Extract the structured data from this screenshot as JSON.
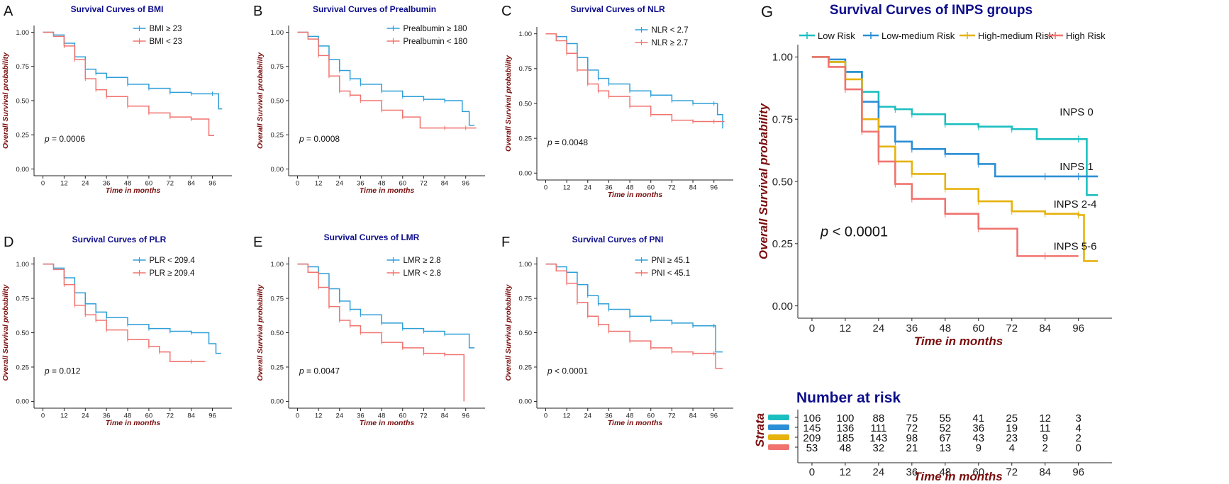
{
  "colors": {
    "blue": "#2f9fd8",
    "red": "#f0736f",
    "teal": "#1cbfc0",
    "low_medium": "#2b8fd5",
    "gold": "#e6b20e",
    "title": "#0d0d8c",
    "axis_label": "#7a0c0c"
  },
  "chart_data": [
    {
      "type": "line",
      "panel": "A",
      "title": "Survival Curves of BMI",
      "xlabel": "Time in months",
      "ylabel": "Overall Survival probability",
      "xlim": [
        0,
        102
      ],
      "ylim": [
        0,
        1
      ],
      "x_ticks": [
        0,
        12,
        24,
        36,
        48,
        60,
        72,
        84,
        96
      ],
      "y_ticks": [
        "0.00",
        "0.25",
        "0.50",
        "0.75",
        "1.00"
      ],
      "pvalue": "= 0.0006",
      "series": [
        {
          "name": "BMI ≥ 23",
          "color": "#2f9fd8",
          "x": [
            0,
            6,
            12,
            18,
            24,
            30,
            36,
            48,
            60,
            72,
            84,
            96,
            99.5,
            99.5,
            101.5
          ],
          "y": [
            1,
            0.98,
            0.92,
            0.82,
            0.73,
            0.7,
            0.67,
            0.62,
            0.59,
            0.56,
            0.55,
            0.55,
            0.55,
            0.44,
            0.44
          ]
        },
        {
          "name": "BMI < 23",
          "color": "#f0736f",
          "x": [
            0,
            6,
            12,
            18,
            24,
            30,
            36,
            48,
            60,
            72,
            84,
            94,
            94,
            97
          ],
          "y": [
            1,
            0.97,
            0.9,
            0.8,
            0.66,
            0.58,
            0.53,
            0.46,
            0.41,
            0.38,
            0.365,
            0.365,
            0.245,
            0.245
          ]
        }
      ]
    },
    {
      "type": "line",
      "panel": "B",
      "title": "Survival Curves of Prealbumin",
      "xlabel": "Time in months",
      "ylabel": "Overall Survival probability",
      "xlim": [
        0,
        102
      ],
      "ylim": [
        0,
        1
      ],
      "x_ticks": [
        0,
        12,
        24,
        36,
        48,
        60,
        72,
        84,
        96
      ],
      "y_ticks": [
        "0.00",
        "0.25",
        "0.50",
        "0.75",
        "1.00"
      ],
      "pvalue": "= 0.0008",
      "series": [
        {
          "name": "Prealbumin ≥ 180",
          "color": "#2f9fd8",
          "x": [
            0,
            6,
            12,
            18,
            24,
            30,
            36,
            48,
            60,
            72,
            84,
            94,
            94,
            98,
            98,
            101
          ],
          "y": [
            1,
            0.97,
            0.9,
            0.8,
            0.72,
            0.66,
            0.62,
            0.57,
            0.53,
            0.51,
            0.5,
            0.5,
            0.42,
            0.42,
            0.32,
            0.32
          ]
        },
        {
          "name": "Prealbumin < 180",
          "color": "#f0736f",
          "x": [
            0,
            6,
            12,
            18,
            24,
            30,
            36,
            48,
            60,
            70,
            70,
            84,
            96,
            102
          ],
          "y": [
            1,
            0.95,
            0.83,
            0.68,
            0.57,
            0.54,
            0.5,
            0.43,
            0.38,
            0.38,
            0.3,
            0.3,
            0.3,
            0.3
          ]
        }
      ]
    },
    {
      "type": "line",
      "panel": "C",
      "title": "Survival Curves of NLR",
      "xlabel": "Time in months",
      "ylabel": "Overall Survival probability",
      "xlim": [
        0,
        102
      ],
      "ylim": [
        0,
        1
      ],
      "x_ticks": [
        0,
        12,
        24,
        36,
        48,
        60,
        72,
        84,
        96
      ],
      "y_ticks": [
        "0.00",
        "0.25",
        "0.50",
        "0.75",
        "1.00"
      ],
      "pvalue": "= 0.0048",
      "series": [
        {
          "name": "NLR < 2.7",
          "color": "#2f9fd8",
          "x": [
            0,
            6,
            12,
            18,
            24,
            30,
            36,
            48,
            60,
            72,
            84,
            96,
            98,
            98,
            101
          ],
          "y": [
            1,
            0.98,
            0.93,
            0.83,
            0.74,
            0.68,
            0.64,
            0.59,
            0.56,
            0.52,
            0.5,
            0.5,
            0.5,
            0.42,
            0.32
          ]
        },
        {
          "name": "NLR ≥ 2.7",
          "color": "#f0736f",
          "x": [
            0,
            6,
            12,
            18,
            24,
            30,
            36,
            48,
            60,
            72,
            84,
            96,
            102
          ],
          "y": [
            1,
            0.95,
            0.86,
            0.74,
            0.64,
            0.59,
            0.55,
            0.48,
            0.42,
            0.38,
            0.37,
            0.37,
            0.37
          ]
        }
      ]
    },
    {
      "type": "line",
      "panel": "D",
      "title": "Survival Curves of PLR",
      "xlabel": "Time in months",
      "ylabel": "Overall Survival probability",
      "xlim": [
        0,
        102
      ],
      "ylim": [
        0,
        1
      ],
      "x_ticks": [
        0,
        12,
        24,
        36,
        48,
        60,
        72,
        84,
        96
      ],
      "y_ticks": [
        "0.00",
        "0.25",
        "0.50",
        "0.75",
        "1.00"
      ],
      "pvalue": "= 0.012",
      "series": [
        {
          "name": "PLR < 209.4",
          "color": "#2f9fd8",
          "x": [
            0,
            6,
            12,
            18,
            24,
            30,
            36,
            48,
            60,
            72,
            84,
            94,
            94,
            98,
            98,
            101
          ],
          "y": [
            1,
            0.97,
            0.9,
            0.79,
            0.71,
            0.65,
            0.61,
            0.56,
            0.53,
            0.51,
            0.5,
            0.5,
            0.42,
            0.42,
            0.35,
            0.35
          ]
        },
        {
          "name": "PLR ≥ 209.4",
          "color": "#f0736f",
          "x": [
            0,
            6,
            12,
            18,
            24,
            30,
            36,
            48,
            60,
            66,
            72,
            72,
            84,
            92
          ],
          "y": [
            1,
            0.96,
            0.85,
            0.7,
            0.63,
            0.59,
            0.52,
            0.45,
            0.4,
            0.36,
            0.33,
            0.29,
            0.29,
            0.29
          ]
        }
      ]
    },
    {
      "type": "line",
      "panel": "E",
      "title": "Survival Curves of LMR",
      "xlabel": "Time in months",
      "ylabel": "Overall Survival probability",
      "xlim": [
        0,
        102
      ],
      "ylim": [
        0,
        1
      ],
      "x_ticks": [
        0,
        12,
        24,
        36,
        48,
        60,
        72,
        84,
        96
      ],
      "y_ticks": [
        "0.00",
        "0.25",
        "0.50",
        "0.75",
        "1.00"
      ],
      "pvalue": "= 0.0047",
      "series": [
        {
          "name": "LMR ≥ 2.8",
          "color": "#2f9fd8",
          "x": [
            0,
            6,
            12,
            18,
            24,
            30,
            36,
            48,
            60,
            72,
            84,
            98,
            98,
            101
          ],
          "y": [
            1,
            0.98,
            0.93,
            0.82,
            0.73,
            0.67,
            0.63,
            0.57,
            0.53,
            0.51,
            0.49,
            0.49,
            0.39,
            0.39
          ]
        },
        {
          "name": "LMR < 2.8",
          "color": "#f0736f",
          "x": [
            0,
            6,
            12,
            18,
            24,
            30,
            36,
            48,
            60,
            72,
            84,
            95,
            95
          ],
          "y": [
            1,
            0.94,
            0.83,
            0.69,
            0.59,
            0.55,
            0.5,
            0.43,
            0.39,
            0.35,
            0.34,
            0.34,
            0.0
          ]
        }
      ]
    },
    {
      "type": "line",
      "panel": "F",
      "title": "Survival Curves of PNI",
      "xlabel": "Time in months",
      "ylabel": "Overall Survival probability",
      "xlim": [
        0,
        102
      ],
      "ylim": [
        0,
        1
      ],
      "x_ticks": [
        0,
        12,
        24,
        36,
        48,
        60,
        72,
        84,
        96
      ],
      "y_ticks": [
        "0.00",
        "0.25",
        "0.50",
        "0.75",
        "1.00"
      ],
      "pvalue": "< 0.0001",
      "series": [
        {
          "name": "PNI ≥ 45.1",
          "color": "#2f9fd8",
          "x": [
            0,
            6,
            12,
            18,
            24,
            30,
            36,
            48,
            60,
            72,
            84,
            96,
            97,
            97,
            101
          ],
          "y": [
            1,
            0.98,
            0.94,
            0.85,
            0.77,
            0.71,
            0.67,
            0.62,
            0.59,
            0.57,
            0.55,
            0.55,
            0.55,
            0.36,
            0.36
          ]
        },
        {
          "name": "PNI < 45.1",
          "color": "#f0736f",
          "x": [
            0,
            6,
            12,
            18,
            24,
            30,
            36,
            48,
            60,
            72,
            84,
            96,
            97,
            97,
            101
          ],
          "y": [
            1,
            0.95,
            0.86,
            0.72,
            0.62,
            0.56,
            0.51,
            0.44,
            0.39,
            0.36,
            0.35,
            0.35,
            0.35,
            0.24,
            0.24
          ]
        }
      ]
    },
    {
      "type": "line",
      "panel": "G",
      "title": "Survival Curves of INPS groups",
      "xlabel": "Time in months",
      "ylabel": "Overall Survival probability",
      "xlim": [
        0,
        103
      ],
      "ylim": [
        0,
        1
      ],
      "x_ticks": [
        0,
        12,
        24,
        36,
        48,
        60,
        72,
        84,
        96
      ],
      "y_ticks": [
        "0.00",
        "0.25",
        "0.50",
        "0.75",
        "1.00"
      ],
      "pvalue": "< 0.0001",
      "legend_title": "Strata",
      "series": [
        {
          "name": "Low Risk",
          "label": "INPS 0",
          "color": "#1cbfc0",
          "x": [
            0,
            6,
            12,
            18,
            24,
            30,
            36,
            48,
            60,
            72,
            81,
            81,
            96,
            99,
            99,
            103
          ],
          "y": [
            1,
            0.98,
            0.94,
            0.86,
            0.8,
            0.79,
            0.77,
            0.73,
            0.72,
            0.71,
            0.71,
            0.67,
            0.67,
            0.67,
            0.445,
            0.445
          ]
        },
        {
          "name": "Low-medium Risk",
          "label": "INPS 1",
          "color": "#2b8fd5",
          "x": [
            0,
            6,
            12,
            18,
            24,
            30,
            36,
            48,
            60,
            66,
            66,
            84,
            96,
            103
          ],
          "y": [
            1,
            0.99,
            0.94,
            0.82,
            0.72,
            0.66,
            0.63,
            0.61,
            0.57,
            0.57,
            0.52,
            0.52,
            0.52,
            0.52
          ]
        },
        {
          "name": "High-medium Risk",
          "label": "INPS 2-4",
          "color": "#e6b20e",
          "x": [
            0,
            6,
            12,
            18,
            24,
            30,
            36,
            48,
            60,
            72,
            84,
            96,
            98,
            98,
            103
          ],
          "y": [
            1,
            0.98,
            0.91,
            0.75,
            0.64,
            0.58,
            0.53,
            0.47,
            0.42,
            0.38,
            0.37,
            0.365,
            0.365,
            0.18,
            0.18
          ]
        },
        {
          "name": "High Risk",
          "label": "INPS 5-6",
          "color": "#f0736f",
          "x": [
            0,
            6,
            12,
            18,
            24,
            30,
            36,
            48,
            60,
            66,
            66,
            74,
            74,
            84,
            96
          ],
          "y": [
            1,
            0.96,
            0.87,
            0.7,
            0.58,
            0.49,
            0.43,
            0.37,
            0.31,
            0.31,
            0.31,
            0.31,
            0.2,
            0.2,
            0.2
          ]
        }
      ],
      "risk_table": {
        "title": "Number at risk",
        "times": [
          0,
          12,
          24,
          36,
          48,
          60,
          72,
          84,
          96
        ],
        "rows": [
          {
            "color": "#1cbfc0",
            "values": [
              106,
              100,
              88,
              75,
              55,
              41,
              25,
              12,
              3
            ]
          },
          {
            "color": "#2b8fd5",
            "values": [
              145,
              136,
              111,
              72,
              52,
              36,
              19,
              11,
              4
            ]
          },
          {
            "color": "#e6b20e",
            "values": [
              209,
              185,
              143,
              98,
              67,
              43,
              23,
              9,
              2
            ]
          },
          {
            "color": "#f0736f",
            "values": [
              53,
              48,
              32,
              21,
              13,
              9,
              4,
              2,
              0
            ]
          }
        ]
      }
    }
  ]
}
